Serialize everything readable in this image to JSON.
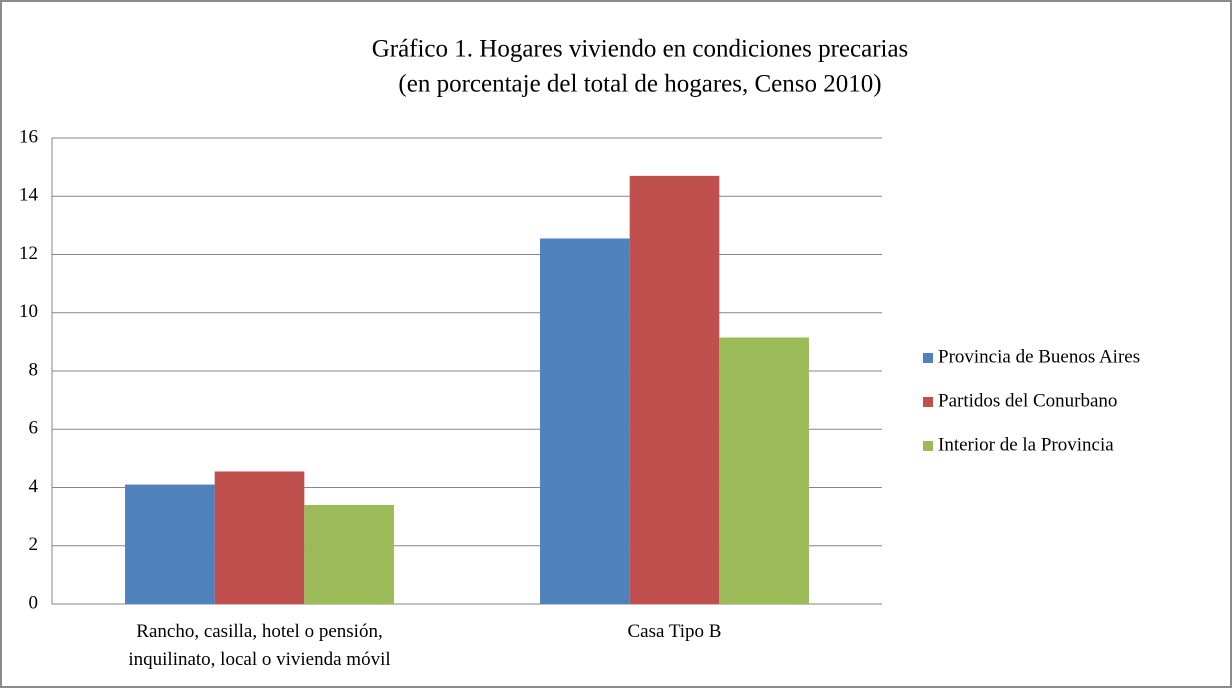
{
  "chart_data": {
    "type": "bar",
    "title": "Gráfico 1. Hogares viviendo en condiciones precarias",
    "subtitle": "(en porcentaje del total de hogares, Censo 2010)",
    "categories": [
      "Rancho, casilla, hotel o pensión,\ninquilinato, local o vivienda móvil",
      "Casa Tipo B"
    ],
    "series": [
      {
        "name": "Provincia de Buenos Aires",
        "color": "#4f81bd",
        "values": [
          4.1,
          12.55
        ]
      },
      {
        "name": "Partidos del Conurbano",
        "color": "#c0504d",
        "values": [
          4.55,
          14.7
        ]
      },
      {
        "name": "Interior de la Provincia",
        "color": "#9bbb59",
        "values": [
          3.4,
          9.15
        ]
      }
    ],
    "ylim": [
      0,
      16
    ],
    "yticks": [
      0,
      2,
      4,
      6,
      8,
      10,
      12,
      14,
      16
    ],
    "grid": true,
    "legend": "right"
  }
}
